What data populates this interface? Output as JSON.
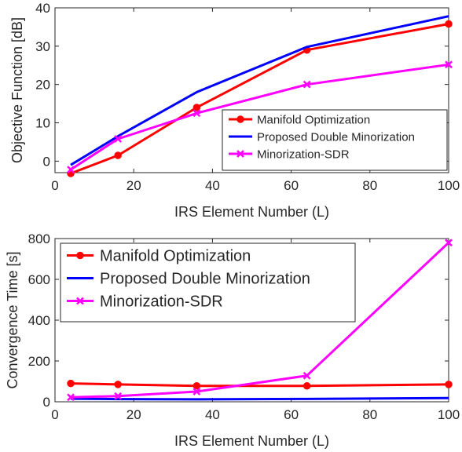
{
  "chart_data": [
    {
      "type": "line",
      "xlabel": "IRS Element Number (L)",
      "ylabel": "Objective Function [dB]",
      "xlim": [
        0,
        100
      ],
      "ylim": [
        -3,
        40
      ],
      "x_ticks": [
        "0",
        "20",
        "40",
        "60",
        "80",
        "100"
      ],
      "y_ticks": [
        "0",
        "10",
        "20",
        "30",
        "40"
      ],
      "legend_placement": "bottom-right",
      "x": [
        4,
        16,
        36,
        64,
        100
      ],
      "series": [
        {
          "name": "Manifold Optimization",
          "color": "#ff0000",
          "marker": "circle",
          "values": [
            -3.2,
            1.5,
            14.0,
            29.0,
            35.8
          ]
        },
        {
          "name": "Proposed Double Minorization",
          "color": "#0000ff",
          "marker": "none",
          "values": [
            -1.0,
            6.5,
            18.0,
            29.8,
            37.8
          ]
        },
        {
          "name": "Minorization-SDR",
          "color": "#ff00ff",
          "marker": "x",
          "values": [
            -2.2,
            5.8,
            12.5,
            20.0,
            25.2
          ]
        }
      ]
    },
    {
      "type": "line",
      "xlabel": "IRS Element Number (L)",
      "ylabel": "Convergence Time [s]",
      "xlim": [
        0,
        100
      ],
      "ylim": [
        0,
        800
      ],
      "x_ticks": [
        "0",
        "20",
        "40",
        "60",
        "80",
        "100"
      ],
      "y_ticks": [
        "0",
        "200",
        "400",
        "600",
        "800"
      ],
      "legend_placement": "top-left",
      "x": [
        4,
        16,
        36,
        64,
        100
      ],
      "series": [
        {
          "name": "Manifold Optimization",
          "color": "#ff0000",
          "marker": "circle",
          "values": [
            90,
            85,
            78,
            78,
            85
          ]
        },
        {
          "name": "Proposed Double Minorization",
          "color": "#0000ff",
          "marker": "none",
          "values": [
            15,
            13,
            12,
            14,
            18
          ]
        },
        {
          "name": "Minorization-SDR",
          "color": "#ff00ff",
          "marker": "x",
          "values": [
            22,
            28,
            50,
            128,
            780
          ]
        }
      ]
    }
  ]
}
